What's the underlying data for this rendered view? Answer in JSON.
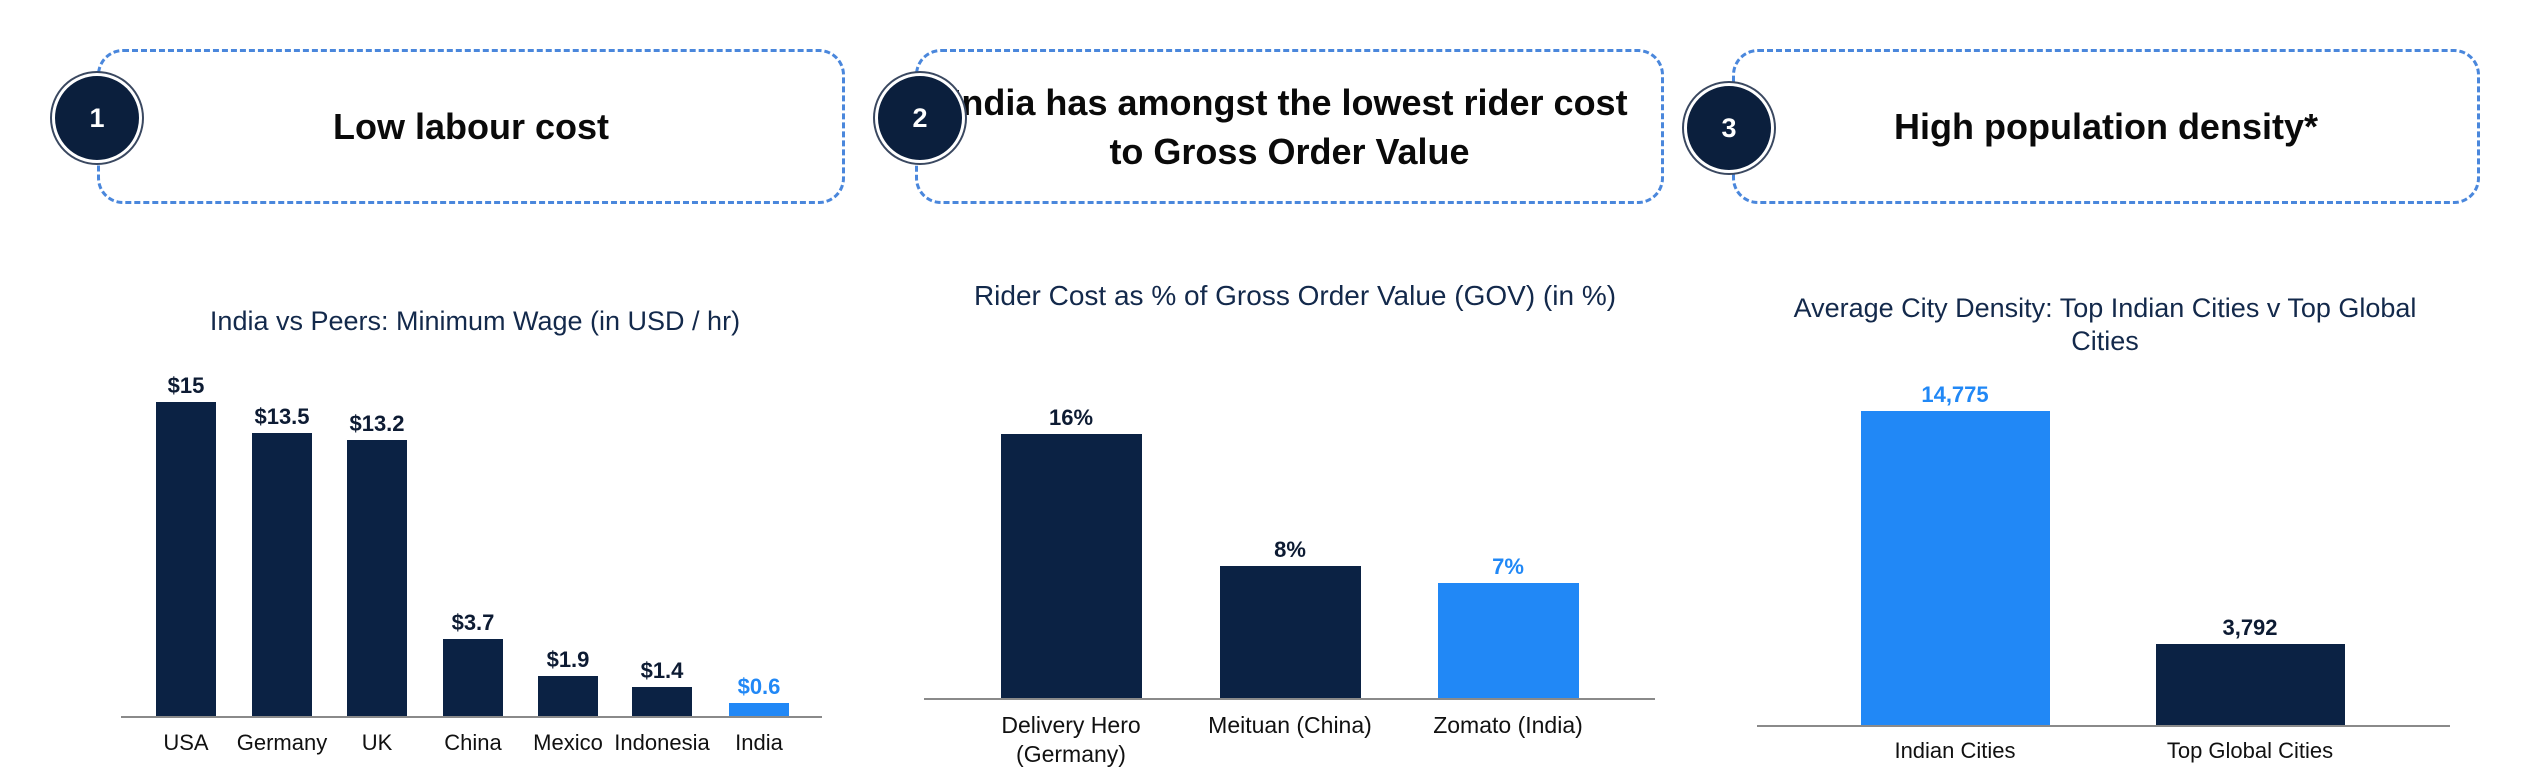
{
  "colors": {
    "navy": "#0b2244",
    "highlight": "#2188f6",
    "border": "#4a87dc",
    "title": "#13294b",
    "label": "#0d1b33",
    "badge": "#0b1f3d"
  },
  "panels": [
    {
      "number": "1",
      "heading_lines": [
        "Low labour cost"
      ]
    },
    {
      "number": "2",
      "heading_lines": [
        "India has amongst the lowest rider cost",
        "to Gross Order Value"
      ]
    },
    {
      "number": "3",
      "heading_lines": [
        "High population density*"
      ]
    }
  ],
  "chart_data": [
    {
      "type": "bar",
      "title": "India vs Peers: Minimum Wage (in USD / hr)",
      "categories": [
        "USA",
        "Germany",
        "UK",
        "China",
        "Mexico",
        "Indonesia",
        "India"
      ],
      "values": [
        15,
        13.5,
        13.2,
        3.7,
        1.9,
        1.4,
        0.6
      ],
      "data_labels": [
        "$15",
        "$13.5",
        "$13.2",
        "$3.7",
        "$1.9",
        "$1.4",
        "$0.6"
      ],
      "highlight_index": 6,
      "grid": false
    },
    {
      "type": "bar",
      "title": "Rider Cost as % of Gross Order Value (GOV) (in %)",
      "categories": [
        "Delivery Hero (Germany)",
        "Meituan (China)",
        "Zomato (India)"
      ],
      "values": [
        16,
        8,
        7
      ],
      "data_labels": [
        "16%",
        "8%",
        "7%"
      ],
      "highlight_index": 2,
      "grid": false
    },
    {
      "type": "bar",
      "title": "Average City Density: Top Indian Cities v Top Global Cities",
      "categories": [
        "Indian Cities",
        "Top Global Cities"
      ],
      "values": [
        14775,
        3792
      ],
      "data_labels": [
        "14,775",
        "3,792"
      ],
      "highlight_index": 0,
      "grid": false
    }
  ]
}
